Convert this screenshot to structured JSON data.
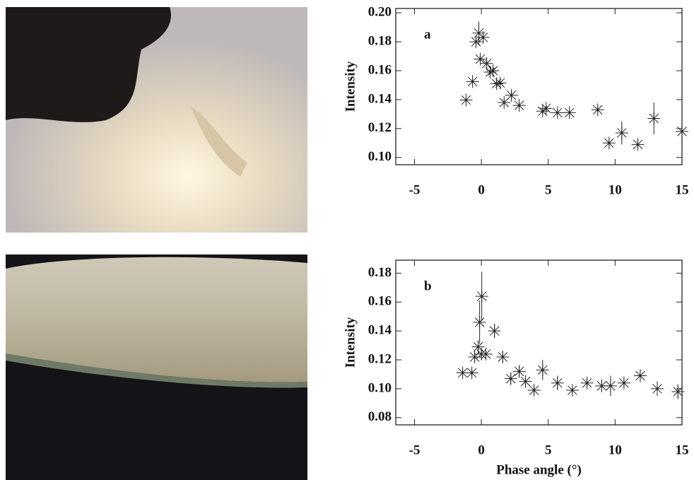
{
  "chart_data": [
    {
      "type": "scatter",
      "label": "a",
      "ylabel": "Intensity",
      "color": "#222",
      "x": [
        -1.14,
        -0.66,
        -0.4,
        -0.19,
        -0.08,
        0.13,
        0.4,
        0.66,
        0.87,
        1.14,
        1.4,
        1.7,
        2.25,
        2.83,
        4.58,
        4.84,
        5.69,
        6.59,
        8.7,
        9.55,
        10.5,
        11.7,
        12.9,
        15
      ],
      "values": [
        0.1397,
        0.1525,
        0.18,
        0.186,
        0.168,
        0.183,
        0.165,
        0.159,
        0.16,
        0.151,
        0.1515,
        0.138,
        0.143,
        0.136,
        0.132,
        0.134,
        0.131,
        0.131,
        0.133,
        0.11,
        0.117,
        0.109,
        0.127,
        0.118
      ],
      "errors": [
        0.002,
        0.002,
        0.003,
        0.008,
        0.002,
        0.003,
        0.002,
        0.002,
        0.002,
        0.002,
        0.002,
        0.002,
        0.003,
        0.002,
        0.002,
        0.002,
        0.002,
        0.002,
        0.002,
        0.002,
        0.008,
        0.002,
        0.011,
        0.003
      ],
      "xlim": [
        -6.4,
        15
      ],
      "ylim": [
        0.095,
        0.203
      ],
      "xticks": [
        -5,
        0,
        5,
        10,
        15
      ],
      "yticks": [
        {
          "value": 0.1,
          "label": "0.10"
        },
        0.12,
        0.14,
        0.16,
        0.18,
        {
          "value": 0.2,
          "label": "0.20"
        }
      ]
    },
    {
      "type": "scatter",
      "label": "b",
      "ylabel": "Intensity",
      "xlabel": "Phase angle (°)",
      "color": "#222",
      "x": [
        -1.4,
        -0.71,
        -0.5,
        -0.24,
        -0.13,
        0,
        0.03,
        0.34,
        0.98,
        1.6,
        2.2,
        2.83,
        3.3,
        3.94,
        4.58,
        5.69,
        6.8,
        7.9,
        9.0,
        9.66,
        10.66,
        11.88,
        13.15,
        14.7
      ],
      "values": [
        0.111,
        0.111,
        0.122,
        0.129,
        0.146,
        0.124,
        0.164,
        0.124,
        0.14,
        0.122,
        0.107,
        0.112,
        0.105,
        0.099,
        0.113,
        0.104,
        0.099,
        0.104,
        0.102,
        0.102,
        0.104,
        0.109,
        0.1,
        0.098
      ],
      "errors": [
        0.002,
        0.002,
        0.003,
        0.004,
        0.015,
        0.004,
        0.017,
        0.003,
        0.005,
        0.004,
        0.004,
        0.004,
        0.004,
        0.003,
        0.007,
        0.005,
        0.002,
        0.003,
        0.004,
        0.007,
        0.003,
        0.004,
        0.005,
        0.005
      ],
      "xlim": [
        -6.4,
        15
      ],
      "ylim": [
        0.075,
        0.189
      ],
      "xticks": [
        -5,
        0,
        5,
        10,
        15
      ],
      "yticks": [
        {
          "value": 0.08,
          "label": "0.08"
        },
        {
          "value": 0.1,
          "label": "0.10"
        },
        0.12,
        0.14,
        0.16,
        0.18
      ]
    }
  ]
}
